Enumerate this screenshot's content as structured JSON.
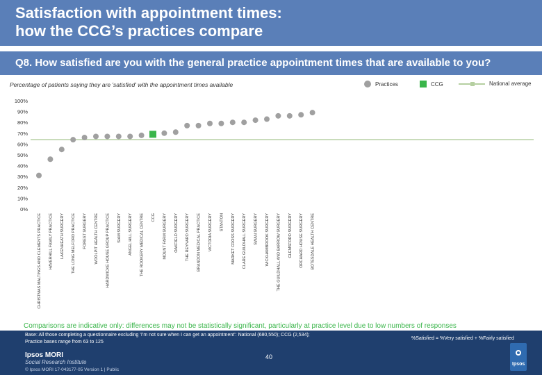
{
  "header": {
    "title": "Satisfaction with appointment times:\nhow the CCG’s practices compare",
    "question": "Q8. How satisfied are you with the general practice appointment times that are available to you?"
  },
  "chart_data": {
    "type": "scatter",
    "title": "Percentage of patients saying they are 'satisfied' with the appointment times available",
    "ylim": [
      0,
      100
    ],
    "yticks": [
      "100%",
      "90%",
      "80%",
      "70%",
      "60%",
      "50%",
      "40%",
      "30%",
      "20%",
      "10%",
      "0%"
    ],
    "legend": {
      "practices": "Practices",
      "ccg": "CCG",
      "national": "National average"
    },
    "national_average": 64,
    "categories": [
      "CHRISTMAS MALTINGS AND CLEMENTS PRACTICE",
      "HAVERHILL FAMILY PRACTICE",
      "LAKENHEATH SURGERY",
      "THE LONG MELFORD PRACTICE",
      "FOREST SURGERY",
      "WOOLPIT HEALTH CENTRE",
      "HARDWICKE HOUSE GROUP PRACTICE",
      "SIAM SURGERY",
      "ANGEL HILL SURGERY",
      "THE ROOKERY MEDICAL CENTRE",
      "CCG",
      "MOUNT FARM SURGERY",
      "OAKFIELD SURGERY",
      "THE REYNARD SURGERY",
      "BRANDON MEDICAL PRACTICE",
      "VICTORIA SURGERY",
      "STANTON",
      "MARKET CROSS SURGERY",
      "CLARE GUILDHALL SURGERY",
      "SWAN SURGERY",
      "WICKHAMBROOK SURGERY",
      "THE GUILDHALL AND BARROW SURGERY",
      "GLEMSFORD SURGERY",
      "ORCHARD HOUSE SURGERY",
      "BOTESDALE HEALTH CENTRE"
    ],
    "values": [
      31,
      46,
      55,
      64,
      66,
      67,
      67,
      67,
      67,
      68,
      69,
      70,
      71,
      77,
      77,
      79,
      79,
      80,
      80,
      82,
      83,
      86,
      86,
      87,
      89
    ],
    "ccg_index": 10
  },
  "note": "Comparisons are indicative only: differences may not be statistically significant, particularly at practice level due to low numbers of responses",
  "footer": {
    "base": "Base: All those completing a questionnaire excluding ‘I’m not sure when I can get an appointment’: National (680,550); CCG (2,534);\nPractice bases range from 63 to 125",
    "satisfied_definition": "%Satisfied = %Very satisfied + %Fairly satisfied",
    "brand": "Ipsos MORI",
    "brand_sub": "Social Research Institute",
    "copyright": "© Ipsos MORI      17-043177-05 Version 1 | Public",
    "page_number": "40",
    "logo_text": "Ipsos"
  },
  "colors": {
    "header_bg": "#5a7fb8",
    "practice_dot": "#a0a0a0",
    "ccg": "#3ab54a",
    "national": "#b5cfa0",
    "footer_bg": "#1f3f6e"
  }
}
